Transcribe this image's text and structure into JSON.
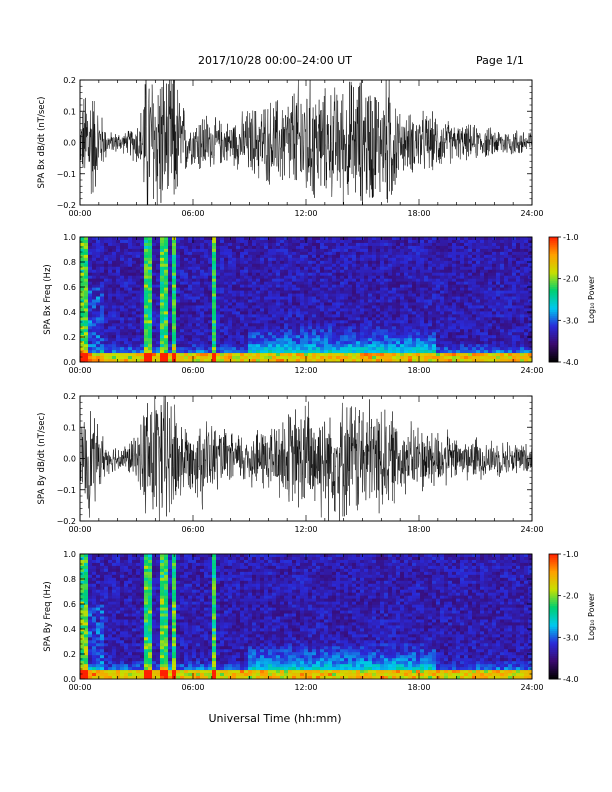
{
  "header": {
    "date_label": "2017/10/28   00:00–24:00 UT",
    "page_label": "Page 1/1"
  },
  "xaxis_label": "Universal Time (hh:mm)",
  "colorbar": {
    "label": "Log₁₀ Power",
    "range": [
      -4.0,
      -1.0
    ],
    "ticks": [
      "-1.0",
      "-2.0",
      "-3.0",
      "-4.0"
    ],
    "colors": [
      "#000000",
      "#3a0a6e",
      "#2a2ad8",
      "#00c8f0",
      "#00d070",
      "#c8e000",
      "#ffa000",
      "#ff2000"
    ]
  },
  "chart_data": [
    {
      "type": "line",
      "panel": "bx-waveform",
      "ylabel": "SPA Bx dB/dt (nT/sec)",
      "xlim": [
        "00:00",
        "24:00"
      ],
      "ylim": [
        -0.2,
        0.2
      ],
      "xticks": [
        "00:00",
        "06:00",
        "12:00",
        "18:00",
        "24:00"
      ],
      "yticks": [
        "0.2",
        "0.1",
        "0.0",
        "−0.1",
        "−0.2"
      ],
      "grid": false,
      "amplitude_profile": {
        "hours": [
          0.0,
          0.4,
          0.9,
          1.5,
          2.5,
          3.2,
          3.5,
          3.8,
          4.2,
          4.6,
          5.0,
          5.4,
          5.9,
          6.5,
          7.0,
          8.0,
          9.0,
          10.0,
          11.0,
          12.0,
          13.0,
          14.0,
          15.0,
          16.0,
          16.5,
          17.0,
          18.0,
          19.0,
          20.0,
          21.0,
          22.0,
          23.0,
          24.0
        ],
        "amplitude": [
          0.05,
          0.22,
          0.12,
          0.03,
          0.03,
          0.08,
          0.25,
          0.22,
          0.25,
          0.2,
          0.22,
          0.12,
          0.06,
          0.1,
          0.07,
          0.06,
          0.1,
          0.12,
          0.14,
          0.2,
          0.15,
          0.17,
          0.2,
          0.16,
          0.22,
          0.08,
          0.09,
          0.08,
          0.05,
          0.05,
          0.04,
          0.04,
          0.04
        ]
      }
    },
    {
      "type": "heatmap",
      "panel": "bx-spectrogram",
      "ylabel": "SPA Bx Freq (Hz)",
      "xlim": [
        "00:00",
        "24:00"
      ],
      "ylim": [
        0.0,
        1.0
      ],
      "xticks": [
        "00:00",
        "06:00",
        "12:00",
        "18:00",
        "24:00"
      ],
      "yticks": [
        "1.0",
        "0.8",
        "0.6",
        "0.4",
        "0.2",
        "0.0"
      ],
      "value_range": [
        -4.0,
        -1.0
      ],
      "bright_bands_hours": [
        0.25,
        3.55,
        3.7,
        4.5,
        5.0,
        7.1
      ]
    },
    {
      "type": "line",
      "panel": "by-waveform",
      "ylabel": "SPA By dB/dt (nT/sec)",
      "xlim": [
        "00:00",
        "24:00"
      ],
      "ylim": [
        -0.2,
        0.2
      ],
      "xticks": [
        "00:00",
        "06:00",
        "12:00",
        "18:00",
        "24:00"
      ],
      "yticks": [
        "0.2",
        "0.1",
        "0.0",
        "−0.1",
        "−0.2"
      ],
      "grid": false,
      "amplitude_profile": {
        "hours": [
          0.0,
          0.4,
          0.9,
          1.5,
          2.5,
          3.2,
          3.5,
          3.8,
          4.2,
          4.6,
          5.0,
          5.4,
          5.9,
          6.5,
          7.0,
          8.0,
          9.0,
          10.0,
          11.0,
          12.0,
          13.0,
          14.0,
          15.0,
          16.0,
          16.5,
          17.0,
          18.0,
          19.0,
          20.0,
          21.0,
          22.0,
          23.0,
          24.0
        ],
        "amplitude": [
          0.06,
          0.18,
          0.1,
          0.04,
          0.04,
          0.08,
          0.22,
          0.2,
          0.22,
          0.2,
          0.18,
          0.12,
          0.08,
          0.14,
          0.1,
          0.07,
          0.08,
          0.1,
          0.13,
          0.17,
          0.16,
          0.17,
          0.17,
          0.16,
          0.14,
          0.1,
          0.1,
          0.09,
          0.06,
          0.06,
          0.05,
          0.05,
          0.04
        ]
      }
    },
    {
      "type": "heatmap",
      "panel": "by-spectrogram",
      "ylabel": "SPA By Freq (Hz)",
      "xlim": [
        "00:00",
        "24:00"
      ],
      "ylim": [
        0.0,
        1.0
      ],
      "xticks": [
        "00:00",
        "06:00",
        "12:00",
        "18:00",
        "24:00"
      ],
      "yticks": [
        "1.0",
        "0.8",
        "0.6",
        "0.4",
        "0.2",
        "0.0"
      ],
      "value_range": [
        -4.0,
        -1.0
      ],
      "bright_bands_hours": [
        0.25,
        3.55,
        3.7,
        4.5,
        5.0,
        7.1
      ]
    }
  ]
}
